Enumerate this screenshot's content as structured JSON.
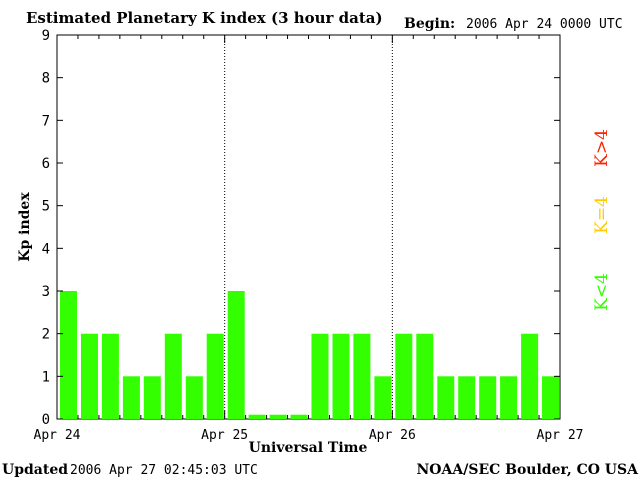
{
  "header": {
    "title": "Estimated Planetary K index (3 hour data)",
    "begin_label": "Begin:",
    "begin_value": "2006 Apr 24 0000 UTC"
  },
  "footer": {
    "updated_label": "Updated",
    "updated_value": "2006 Apr 27 02:45:03 UTC",
    "source": "NOAA/SEC Boulder, CO USA"
  },
  "legend": {
    "low_label": "K<4",
    "mid_label": "K=4",
    "high_label": "K>4",
    "colors": {
      "low": "#33ff00",
      "mid": "#ffcc00",
      "high": "#ff2200"
    }
  },
  "chart_data": {
    "type": "bar",
    "title": "Estimated Planetary K index (3 hour data)",
    "xlabel": "Universal Time",
    "ylabel": "Kp index",
    "ylim": [
      0,
      9
    ],
    "yticks": [
      0,
      1,
      2,
      3,
      4,
      5,
      6,
      7,
      8,
      9
    ],
    "xticks": [
      "Apr 24",
      "Apr 25",
      "Apr 26",
      "Apr 27"
    ],
    "bins_per_day": 8,
    "days": 3,
    "day_separators": true,
    "values": [
      3,
      2,
      2,
      1,
      1,
      2,
      1,
      2,
      3,
      0.1,
      0.1,
      0.1,
      2,
      2,
      2,
      1,
      2,
      2,
      1,
      1,
      1,
      1,
      2,
      1
    ]
  }
}
